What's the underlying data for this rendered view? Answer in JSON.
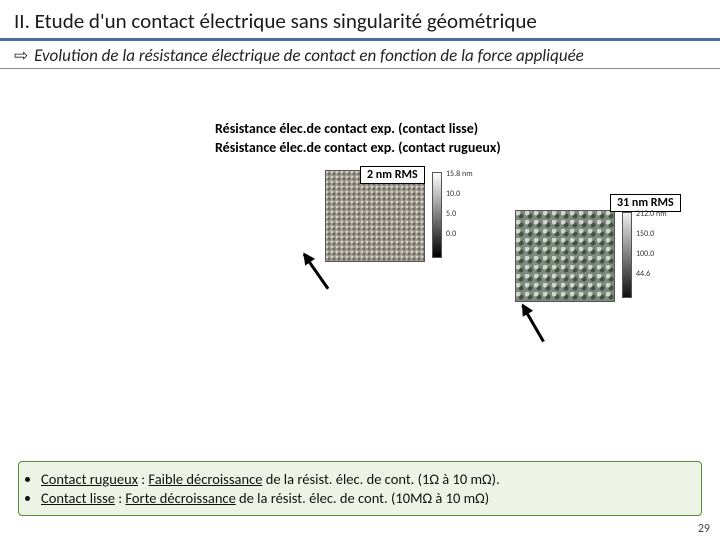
{
  "title": "II. Etude d'un contact électrique sans singularité géométrique",
  "subtitle_arrow": "⇨",
  "subtitle": "Evolution de la résistance électrique de contact en fonction de la force appliquée",
  "legend": {
    "row1": "Résistance élec.de contact exp. (contact lisse)",
    "row2": "Résistance élec.de contact exp. (contact rugueux)"
  },
  "afm": {
    "small": {
      "rms_label": "2 nm RMS",
      "colorbar_ticks": [
        "15.8 nm",
        "10.0",
        "5.0",
        "0.0"
      ]
    },
    "big": {
      "rms_label": "31 nm RMS",
      "colorbar_ticks": [
        "212.0 nm",
        "150.0",
        "100.0",
        "44.6"
      ]
    }
  },
  "summary": {
    "item1_label": "Contact rugueux",
    "item1_mid": " : ",
    "item1_emph": "Faible décroissance",
    "item1_rest": " de la résist. élec. de cont. (1Ω  à 10 mΩ).",
    "item2_label": "Contact lisse",
    "item2_mid": " : ",
    "item2_emph": "Forte décroissance",
    "item2_rest": " de la résist. élec. de cont. (10MΩ  à 10 mΩ)"
  },
  "page_number": "29",
  "colors": {
    "title_underline": "#4a6ea0",
    "summary_border": "#5f8a3a",
    "summary_bg": "#eef4e5"
  }
}
